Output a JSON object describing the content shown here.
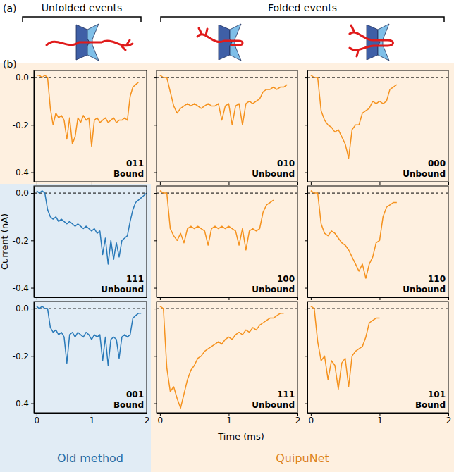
{
  "figure": {
    "panel_labels": [
      "(a)",
      "(b)"
    ],
    "headers": [
      "Unfolded events",
      "Folded events"
    ],
    "ylabel": "Current (nA)",
    "xlabel": "Time (ms)",
    "methods": [
      {
        "label": "Old method",
        "color": "#2a7ab9"
      },
      {
        "label": "QuipuNet",
        "color": "#f5921e"
      }
    ]
  },
  "chart_data": [
    {
      "type": "line",
      "color": "#f5921e",
      "code": "011",
      "state": "Bound",
      "tick_labels": "y",
      "baseline": 0,
      "xlim": [
        -0.05,
        2
      ],
      "ylim": [
        -0.44,
        0.03
      ],
      "xticks": [
        0,
        1,
        2
      ],
      "yticks": [
        {
          "value": 0,
          "label": "0.0"
        },
        -0.2,
        -0.4
      ],
      "x": [
        0,
        0.05,
        0.1,
        0.15,
        0.2,
        0.25,
        0.3,
        0.35,
        0.4,
        0.45,
        0.5,
        0.55,
        0.6,
        0.65,
        0.7,
        0.75,
        0.8,
        0.85,
        0.9,
        0.95,
        1,
        1.05,
        1.1,
        1.15,
        1.2,
        1.25,
        1.3,
        1.35,
        1.4,
        1.45,
        1.5,
        1.55,
        1.6,
        1.65,
        1.7,
        1.75,
        1.8,
        1.85,
        1.9,
        1.95,
        2
      ],
      "values": [
        0.01,
        0.01,
        0.0,
        0.01,
        0.0,
        -0.13,
        -0.2,
        -0.15,
        -0.17,
        -0.16,
        -0.18,
        -0.26,
        -0.17,
        -0.28,
        -0.25,
        -0.17,
        -0.19,
        -0.16,
        -0.18,
        -0.17,
        -0.29,
        -0.18,
        -0.17,
        -0.19,
        -0.18,
        -0.17,
        -0.19,
        -0.18,
        -0.17,
        -0.19,
        -0.18,
        -0.18,
        -0.17,
        -0.18,
        -0.08,
        -0.04,
        -0.03,
        -0.02,
        null,
        null,
        null
      ]
    },
    {
      "type": "line",
      "color": "#f5921e",
      "code": "010",
      "state": "Unbound",
      "tick_labels": false,
      "baseline": 0,
      "xlim": [
        -0.05,
        2
      ],
      "ylim": [
        -0.44,
        0.03
      ],
      "xticks": [
        0,
        1,
        2
      ],
      "yticks": [
        {
          "value": 0,
          "label": "0.0"
        },
        -0.2,
        -0.4
      ],
      "x": [
        0,
        0.05,
        0.1,
        0.15,
        0.2,
        0.25,
        0.3,
        0.35,
        0.4,
        0.45,
        0.5,
        0.55,
        0.6,
        0.65,
        0.7,
        0.75,
        0.8,
        0.85,
        0.9,
        0.95,
        1,
        1.05,
        1.1,
        1.15,
        1.2,
        1.25,
        1.3,
        1.35,
        1.4,
        1.45,
        1.5,
        1.55,
        1.6,
        1.65,
        1.7,
        1.75,
        1.8,
        1.85,
        1.9,
        1.95,
        2
      ],
      "values": [
        0.01,
        0.0,
        0.0,
        -0.06,
        -0.12,
        -0.15,
        -0.13,
        -0.12,
        -0.11,
        -0.12,
        -0.11,
        -0.12,
        -0.13,
        -0.12,
        -0.11,
        -0.12,
        -0.12,
        -0.11,
        -0.18,
        -0.12,
        -0.11,
        -0.2,
        -0.12,
        -0.11,
        -0.2,
        -0.11,
        -0.1,
        -0.11,
        -0.1,
        -0.09,
        -0.06,
        -0.05,
        -0.05,
        -0.04,
        -0.05,
        -0.04,
        -0.04,
        -0.03,
        null,
        null,
        null
      ]
    },
    {
      "type": "line",
      "color": "#f5921e",
      "code": "000",
      "state": "Unbound",
      "tick_labels": false,
      "baseline": 0,
      "xlim": [
        -0.05,
        2
      ],
      "ylim": [
        -0.44,
        0.03
      ],
      "xticks": [
        0,
        1,
        2
      ],
      "yticks": [
        {
          "value": 0,
          "label": "0.0"
        },
        -0.2,
        -0.4
      ],
      "x": [
        0,
        0.05,
        0.1,
        0.15,
        0.2,
        0.25,
        0.3,
        0.35,
        0.4,
        0.45,
        0.5,
        0.55,
        0.6,
        0.65,
        0.7,
        0.75,
        0.8,
        0.85,
        0.9,
        0.95,
        1,
        1.05,
        1.1,
        1.15,
        1.2,
        1.25,
        1.3,
        1.35,
        1.4,
        1.45,
        1.5,
        1.55,
        1.6,
        1.65,
        1.7,
        1.75,
        1.8,
        1.85,
        1.9,
        1.95,
        2
      ],
      "values": [
        0.01,
        0.0,
        0.0,
        -0.14,
        -0.18,
        -0.2,
        -0.21,
        -0.23,
        -0.22,
        -0.25,
        -0.28,
        -0.34,
        -0.22,
        -0.2,
        -0.2,
        -0.15,
        -0.14,
        -0.13,
        -0.1,
        -0.11,
        -0.1,
        -0.11,
        -0.1,
        -0.05,
        -0.04,
        -0.03,
        null,
        null,
        null,
        null,
        null,
        null,
        null,
        null,
        null,
        null,
        null,
        null,
        null,
        null,
        null
      ]
    },
    {
      "type": "line",
      "color": "#2a7ab9",
      "code": "111",
      "state": "Unbound",
      "tick_labels": "y",
      "baseline": 0,
      "xlim": [
        -0.05,
        2
      ],
      "ylim": [
        -0.44,
        0.03
      ],
      "xticks": [
        0,
        1,
        2
      ],
      "yticks": [
        {
          "value": 0,
          "label": "0.0"
        },
        -0.2,
        -0.4
      ],
      "x": [
        0,
        0.05,
        0.1,
        0.15,
        0.2,
        0.25,
        0.3,
        0.35,
        0.4,
        0.45,
        0.5,
        0.55,
        0.6,
        0.65,
        0.7,
        0.75,
        0.8,
        0.85,
        0.9,
        0.95,
        1,
        1.05,
        1.1,
        1.15,
        1.2,
        1.25,
        1.3,
        1.35,
        1.4,
        1.45,
        1.5,
        1.55,
        1.6,
        1.65,
        1.7,
        1.75,
        1.8,
        1.85,
        1.9,
        1.95,
        2
      ],
      "values": [
        0.01,
        0.0,
        0.01,
        0.0,
        -0.07,
        -0.1,
        -0.11,
        -0.1,
        -0.12,
        -0.11,
        -0.12,
        -0.13,
        -0.12,
        -0.13,
        -0.14,
        -0.13,
        -0.14,
        -0.15,
        -0.14,
        -0.15,
        -0.16,
        -0.15,
        -0.17,
        -0.16,
        -0.26,
        -0.19,
        -0.3,
        -0.2,
        -0.28,
        -0.21,
        -0.27,
        -0.2,
        -0.19,
        -0.18,
        -0.12,
        -0.07,
        -0.04,
        -0.03,
        -0.02,
        -0.01,
        0.0
      ]
    },
    {
      "type": "line",
      "color": "#f5921e",
      "code": "100",
      "state": "Unbound",
      "tick_labels": false,
      "baseline": 0,
      "xlim": [
        -0.05,
        2
      ],
      "ylim": [
        -0.44,
        0.03
      ],
      "xticks": [
        0,
        1,
        2
      ],
      "yticks": [
        {
          "value": 0,
          "label": "0.0"
        },
        -0.2,
        -0.4
      ],
      "x": [
        0,
        0.05,
        0.1,
        0.15,
        0.2,
        0.25,
        0.3,
        0.35,
        0.4,
        0.45,
        0.5,
        0.55,
        0.6,
        0.65,
        0.7,
        0.75,
        0.8,
        0.85,
        0.9,
        0.95,
        1,
        1.05,
        1.1,
        1.15,
        1.2,
        1.25,
        1.3,
        1.35,
        1.4,
        1.45,
        1.5,
        1.55,
        1.6,
        1.65,
        1.7,
        1.75,
        1.8,
        1.85,
        1.9,
        1.95,
        2
      ],
      "values": [
        0.01,
        0.0,
        0.0,
        -0.15,
        -0.18,
        -0.2,
        -0.17,
        -0.21,
        -0.15,
        -0.14,
        -0.15,
        -0.14,
        -0.15,
        -0.16,
        -0.22,
        -0.15,
        -0.14,
        -0.15,
        -0.14,
        -0.15,
        -0.14,
        -0.15,
        -0.16,
        -0.22,
        -0.15,
        -0.24,
        -0.16,
        -0.15,
        -0.16,
        -0.15,
        -0.08,
        -0.05,
        -0.04,
        -0.03,
        null,
        null,
        null,
        null,
        null,
        null,
        null
      ]
    },
    {
      "type": "line",
      "color": "#f5921e",
      "code": "110",
      "state": "Unbound",
      "tick_labels": false,
      "baseline": 0,
      "xlim": [
        -0.05,
        2
      ],
      "ylim": [
        -0.44,
        0.03
      ],
      "xticks": [
        0,
        1,
        2
      ],
      "yticks": [
        {
          "value": 0,
          "label": "0.0"
        },
        -0.2,
        -0.4
      ],
      "x": [
        0,
        0.05,
        0.1,
        0.15,
        0.2,
        0.25,
        0.3,
        0.35,
        0.4,
        0.45,
        0.5,
        0.55,
        0.6,
        0.65,
        0.7,
        0.75,
        0.8,
        0.85,
        0.9,
        0.95,
        1,
        1.05,
        1.1,
        1.15,
        1.2,
        1.25,
        1.3,
        1.35,
        1.4,
        1.45,
        1.5,
        1.55,
        1.6,
        1.65,
        1.7,
        1.75,
        1.8,
        1.85,
        1.9,
        1.95,
        2
      ],
      "values": [
        0.01,
        0.0,
        0.0,
        -0.13,
        -0.17,
        -0.18,
        -0.16,
        -0.17,
        -0.19,
        -0.21,
        -0.22,
        -0.24,
        -0.27,
        -0.3,
        -0.33,
        -0.3,
        -0.36,
        -0.3,
        -0.27,
        -0.21,
        -0.2,
        -0.1,
        -0.06,
        -0.05,
        -0.04,
        -0.04,
        null,
        null,
        null,
        null,
        null,
        null,
        null,
        null,
        null,
        null,
        null,
        null,
        null,
        null,
        null
      ]
    },
    {
      "type": "line",
      "color": "#2a7ab9",
      "code": "001",
      "state": "Bound",
      "tick_labels": true,
      "baseline": 0,
      "xlim": [
        -0.05,
        2
      ],
      "ylim": [
        -0.44,
        0.03
      ],
      "xticks": [
        0,
        1,
        2
      ],
      "yticks": [
        {
          "value": 0,
          "label": "0.0"
        },
        -0.2,
        -0.4
      ],
      "x": [
        0,
        0.05,
        0.1,
        0.15,
        0.2,
        0.25,
        0.3,
        0.35,
        0.4,
        0.45,
        0.5,
        0.55,
        0.6,
        0.65,
        0.7,
        0.75,
        0.8,
        0.85,
        0.9,
        0.95,
        1,
        1.05,
        1.1,
        1.15,
        1.2,
        1.25,
        1.3,
        1.35,
        1.4,
        1.45,
        1.5,
        1.55,
        1.6,
        1.65,
        1.7,
        1.75,
        1.8,
        1.85,
        1.9,
        1.95,
        2
      ],
      "values": [
        0.01,
        0.0,
        0.01,
        0.0,
        0.0,
        -0.08,
        -0.1,
        -0.09,
        -0.11,
        -0.1,
        -0.12,
        -0.23,
        -0.11,
        -0.1,
        -0.12,
        -0.1,
        -0.11,
        -0.12,
        -0.1,
        -0.11,
        -0.13,
        -0.11,
        -0.12,
        -0.11,
        -0.22,
        -0.12,
        -0.24,
        -0.13,
        -0.12,
        -0.13,
        -0.21,
        -0.12,
        -0.11,
        -0.12,
        -0.11,
        -0.04,
        -0.03,
        -0.02,
        -0.02,
        null,
        null
      ]
    },
    {
      "type": "line",
      "color": "#f5921e",
      "code": "111",
      "state": "Unbound",
      "tick_labels": "x",
      "baseline": 0,
      "xlim": [
        -0.05,
        2
      ],
      "ylim": [
        -0.44,
        0.03
      ],
      "xticks": [
        0,
        1,
        2
      ],
      "yticks": [
        {
          "value": 0,
          "label": "0.0"
        },
        -0.2,
        -0.4
      ],
      "x": [
        0,
        0.05,
        0.1,
        0.15,
        0.2,
        0.25,
        0.3,
        0.35,
        0.4,
        0.45,
        0.5,
        0.55,
        0.6,
        0.65,
        0.7,
        0.75,
        0.8,
        0.85,
        0.9,
        0.95,
        1,
        1.05,
        1.1,
        1.15,
        1.2,
        1.25,
        1.3,
        1.35,
        1.4,
        1.45,
        1.5,
        1.55,
        1.6,
        1.65,
        1.7,
        1.75,
        1.8,
        1.85,
        1.9,
        1.95,
        2
      ],
      "values": [
        0.01,
        0.0,
        -0.25,
        -0.35,
        -0.33,
        -0.38,
        -0.42,
        -0.36,
        -0.3,
        -0.26,
        -0.24,
        -0.21,
        -0.2,
        -0.18,
        -0.17,
        -0.16,
        -0.15,
        -0.14,
        -0.15,
        -0.13,
        -0.12,
        -0.13,
        -0.11,
        -0.1,
        -0.11,
        -0.09,
        -0.1,
        -0.08,
        -0.09,
        -0.07,
        -0.06,
        -0.05,
        -0.04,
        -0.04,
        -0.03,
        -0.02,
        -0.02,
        null,
        null,
        null,
        null
      ]
    },
    {
      "type": "line",
      "color": "#f5921e",
      "code": "101",
      "state": "Bound",
      "tick_labels": "x",
      "baseline": 0,
      "xlim": [
        -0.05,
        2
      ],
      "ylim": [
        -0.44,
        0.03
      ],
      "xticks": [
        0,
        1,
        2
      ],
      "yticks": [
        {
          "value": 0,
          "label": "0.0"
        },
        -0.2,
        -0.4
      ],
      "x": [
        0,
        0.05,
        0.1,
        0.15,
        0.2,
        0.25,
        0.3,
        0.35,
        0.4,
        0.45,
        0.5,
        0.55,
        0.6,
        0.65,
        0.7,
        0.75,
        0.8,
        0.85,
        0.9,
        0.95,
        1,
        1.05,
        1.1,
        1.15,
        1.2,
        1.25,
        1.3,
        1.35,
        1.4,
        1.45,
        1.5,
        1.55,
        1.6,
        1.65,
        1.7,
        1.75,
        1.8,
        1.85,
        1.9,
        1.95,
        2
      ],
      "values": [
        0.01,
        0.0,
        -0.14,
        -0.22,
        -0.2,
        -0.3,
        -0.22,
        -0.24,
        -0.34,
        -0.23,
        -0.21,
        -0.33,
        -0.2,
        -0.18,
        -0.17,
        -0.16,
        -0.12,
        -0.06,
        -0.05,
        -0.04,
        -0.04,
        null,
        null,
        null,
        null,
        null,
        null,
        null,
        null,
        null,
        null,
        null,
        null,
        null,
        null,
        null,
        null,
        null,
        null,
        null,
        null
      ]
    }
  ]
}
